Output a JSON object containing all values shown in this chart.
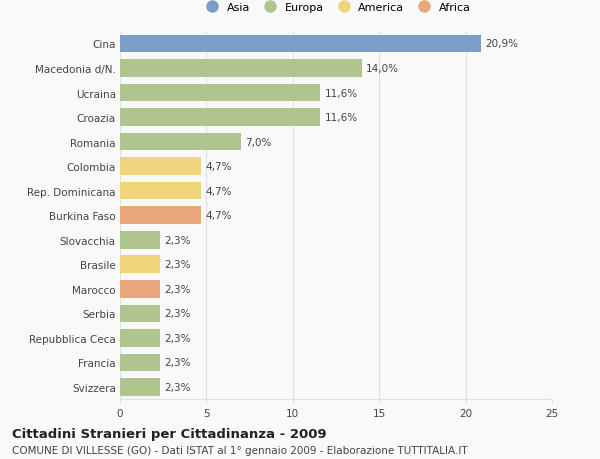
{
  "categories": [
    "Cina",
    "Macedonia d/N.",
    "Ucraina",
    "Croazia",
    "Romania",
    "Colombia",
    "Rep. Dominicana",
    "Burkina Faso",
    "Slovacchia",
    "Brasile",
    "Marocco",
    "Serbia",
    "Repubblica Ceca",
    "Francia",
    "Svizzera"
  ],
  "values": [
    20.9,
    14.0,
    11.6,
    11.6,
    7.0,
    4.7,
    4.7,
    4.7,
    2.3,
    2.3,
    2.3,
    2.3,
    2.3,
    2.3,
    2.3
  ],
  "labels": [
    "20,9%",
    "14,0%",
    "11,6%",
    "11,6%",
    "7,0%",
    "4,7%",
    "4,7%",
    "4,7%",
    "2,3%",
    "2,3%",
    "2,3%",
    "2,3%",
    "2,3%",
    "2,3%",
    "2,3%"
  ],
  "colors": [
    "#7b9dc7",
    "#b0c490",
    "#b0c490",
    "#b0c490",
    "#b0c490",
    "#f0d47c",
    "#f0d47c",
    "#e8a87c",
    "#b0c490",
    "#f0d47c",
    "#e8a87c",
    "#b0c490",
    "#b0c490",
    "#b0c490",
    "#b0c490"
  ],
  "legend_labels": [
    "Asia",
    "Europa",
    "America",
    "Africa"
  ],
  "legend_colors": [
    "#7b9dc7",
    "#b0c490",
    "#f0d47c",
    "#e8a87c"
  ],
  "xlim": [
    0,
    25
  ],
  "xticks": [
    0,
    5,
    10,
    15,
    20,
    25
  ],
  "title": "Cittadini Stranieri per Cittadinanza - 2009",
  "subtitle": "COMUNE DI VILLESSE (GO) - Dati ISTAT al 1° gennaio 2009 - Elaborazione TUTTITALIA.IT",
  "background_color": "#f9f9f9",
  "grid_color": "#e0e0e0",
  "text_color": "#444444",
  "label_fontsize": 7.5,
  "tick_fontsize": 7.5,
  "title_fontsize": 9.5,
  "subtitle_fontsize": 7.5
}
